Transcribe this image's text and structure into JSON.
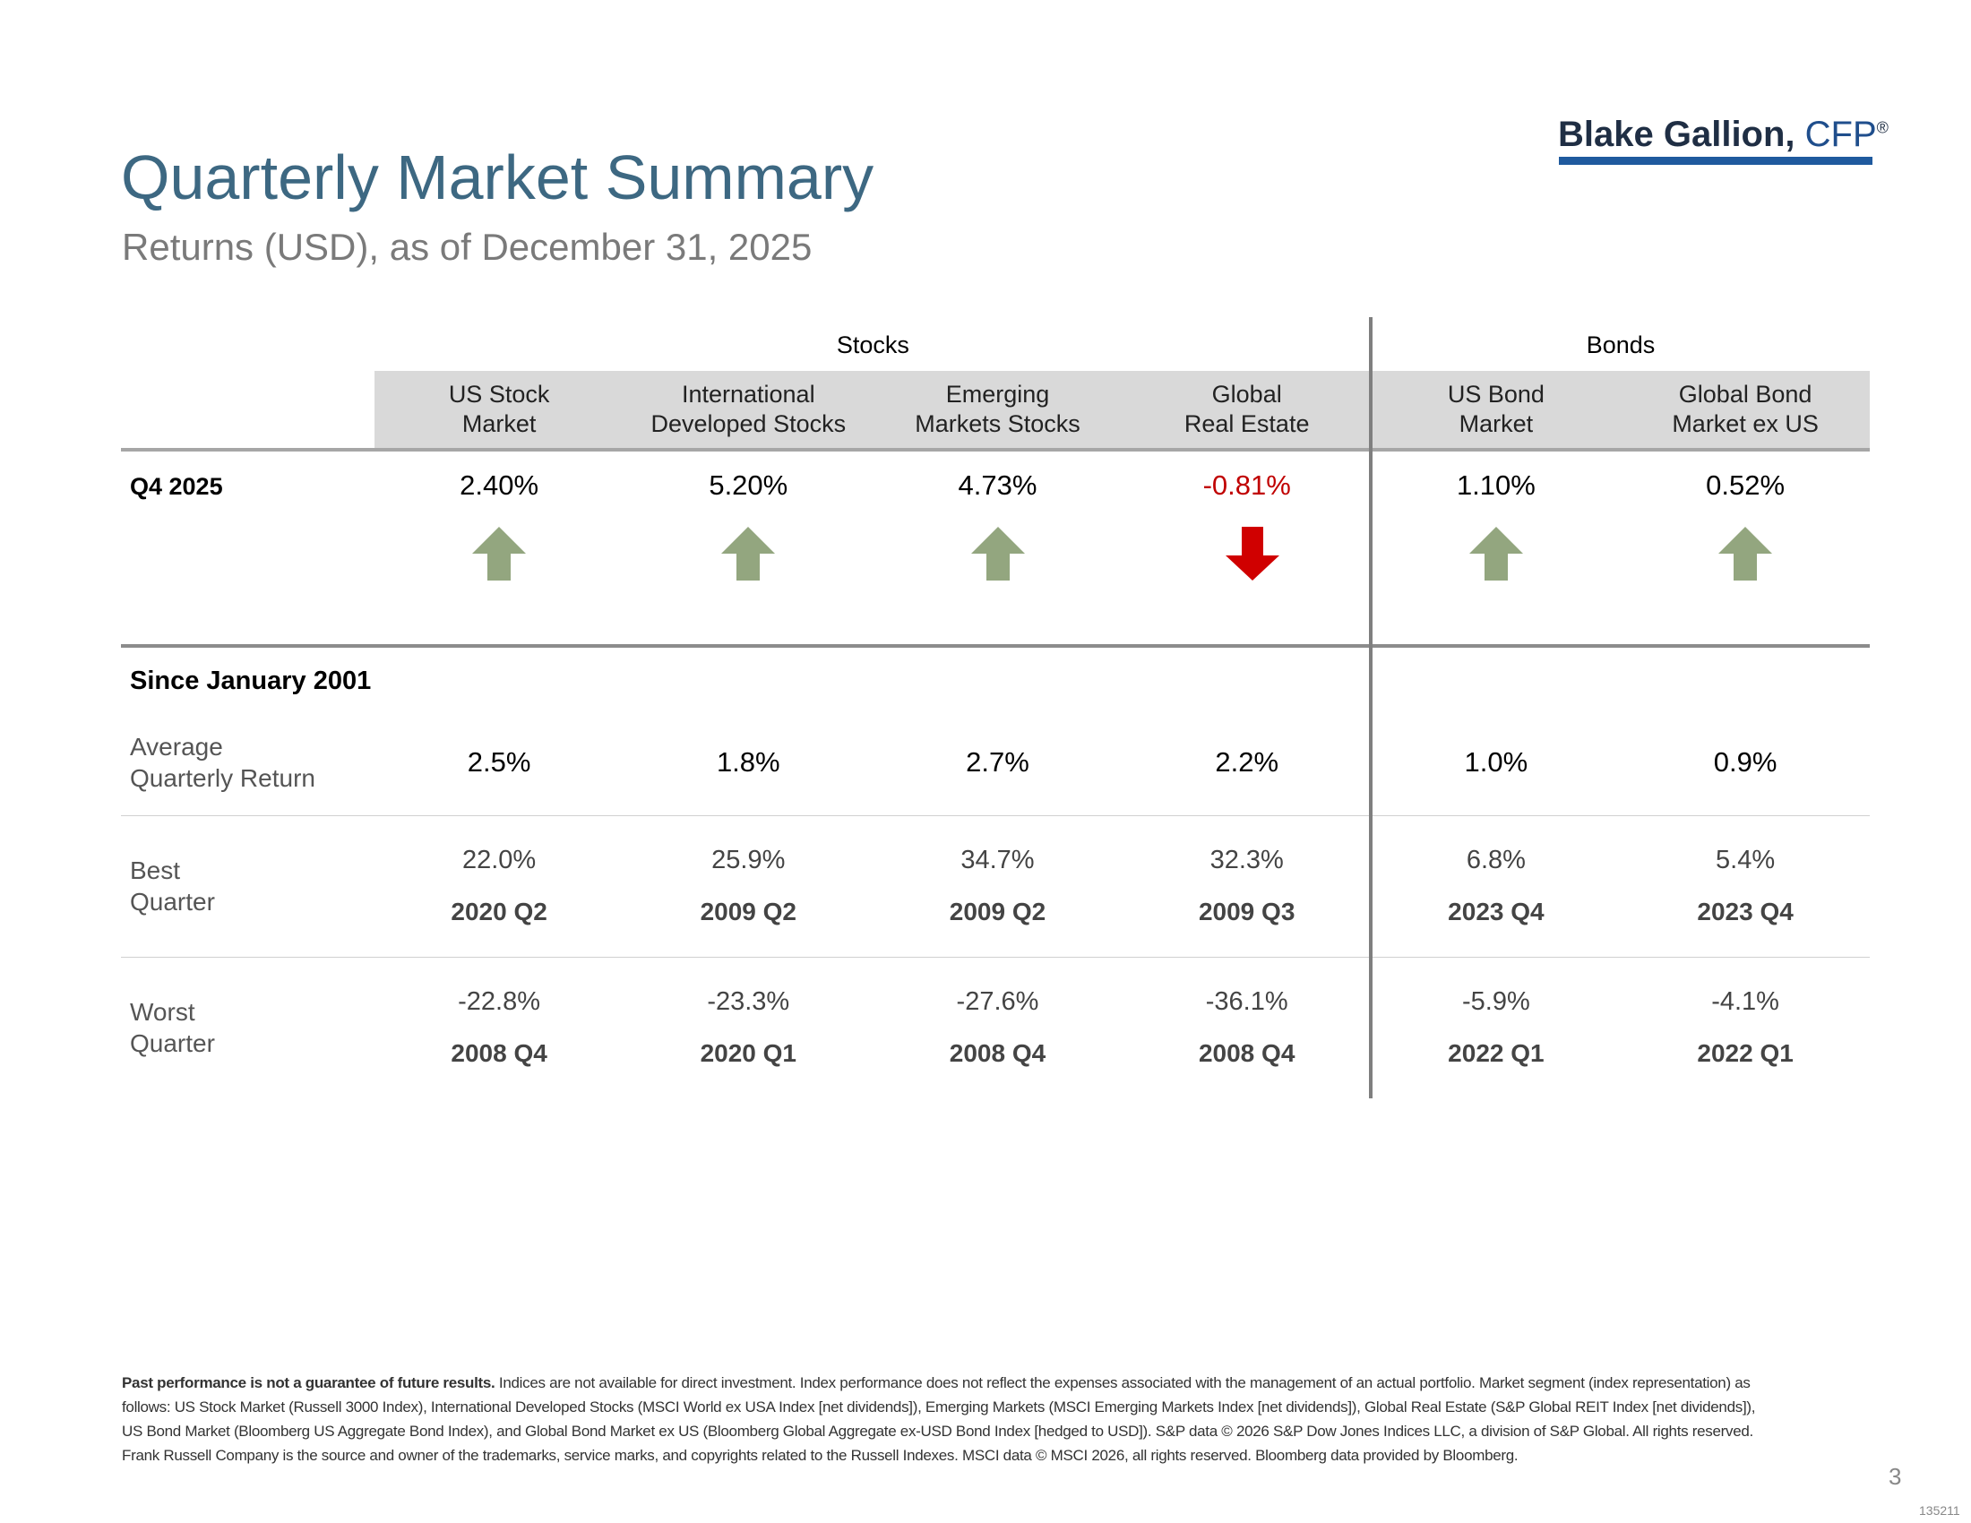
{
  "header": {
    "title": "Quarterly Market Summary",
    "subtitle": "Returns (USD), as of December 31, 2025",
    "logo": {
      "name": "Blake Gallion,",
      "credential": "CFP",
      "mark": "®"
    }
  },
  "table": {
    "groups": [
      "Stocks",
      "Bonds"
    ],
    "columns": [
      [
        "US Stock",
        "Market"
      ],
      [
        "International",
        "Developed Stocks"
      ],
      [
        "Emerging",
        "Markets Stocks"
      ],
      [
        "Global",
        "Real Estate"
      ],
      [
        "US Bond",
        "Market"
      ],
      [
        "Global Bond",
        "Market ex US"
      ]
    ],
    "quarter": {
      "label": "Q4 2025",
      "values": [
        "2.40%",
        "5.20%",
        "4.73%",
        "-0.81%",
        "1.10%",
        "0.52%"
      ]
    },
    "since": {
      "label": "Since January 2001",
      "average": {
        "label": [
          "Average",
          "Quarterly Return"
        ],
        "values": [
          "2.5%",
          "1.8%",
          "2.7%",
          "2.2%",
          "1.0%",
          "0.9%"
        ]
      },
      "best": {
        "label": [
          "Best",
          "Quarter"
        ],
        "values": [
          "22.0%",
          "25.9%",
          "34.7%",
          "32.3%",
          "6.8%",
          "5.4%"
        ],
        "periods": [
          "2020 Q2",
          "2009 Q2",
          "2009 Q2",
          "2009 Q3",
          "2023 Q4",
          "2023 Q4"
        ]
      },
      "worst": {
        "label": [
          "Worst",
          "Quarter"
        ],
        "values": [
          "-22.8%",
          "-23.3%",
          "-27.6%",
          "-36.1%",
          "-5.9%",
          "-4.1%"
        ],
        "periods": [
          "2008 Q4",
          "2020 Q1",
          "2008 Q4",
          "2008 Q4",
          "2022 Q1",
          "2022 Q1"
        ]
      }
    }
  },
  "footnote": {
    "lead": "Past performance is not a guarantee of future results.",
    "text": "Indices are not available for direct investment. Index performance does not reflect the expenses associated with the management of an actual portfolio. Market segment (index representation) as follows: US Stock Market (Russell 3000 Index), International Developed Stocks (MSCI World ex USA Index [net dividends]), Emerging Markets (MSCI Emerging Markets Index [net dividends]), Global Real Estate (S&P Global REIT Index [net dividends]), US Bond Market (Bloomberg US Aggregate Bond Index), and Global Bond Market ex US (Bloomberg Global Aggregate ex-USD Bond Index [hedged to USD]). S&P data © 2026 S&P Dow Jones Indices LLC, a division of S&P Global. All rights reserved. Frank Russell Company is the source and owner of the trademarks, service marks, and copyrights related to the Russell Indexes. MSCI data © MSCI 2026, all rights reserved. Bloomberg data provided by Bloomberg."
  },
  "page": "3",
  "code": "135211"
}
